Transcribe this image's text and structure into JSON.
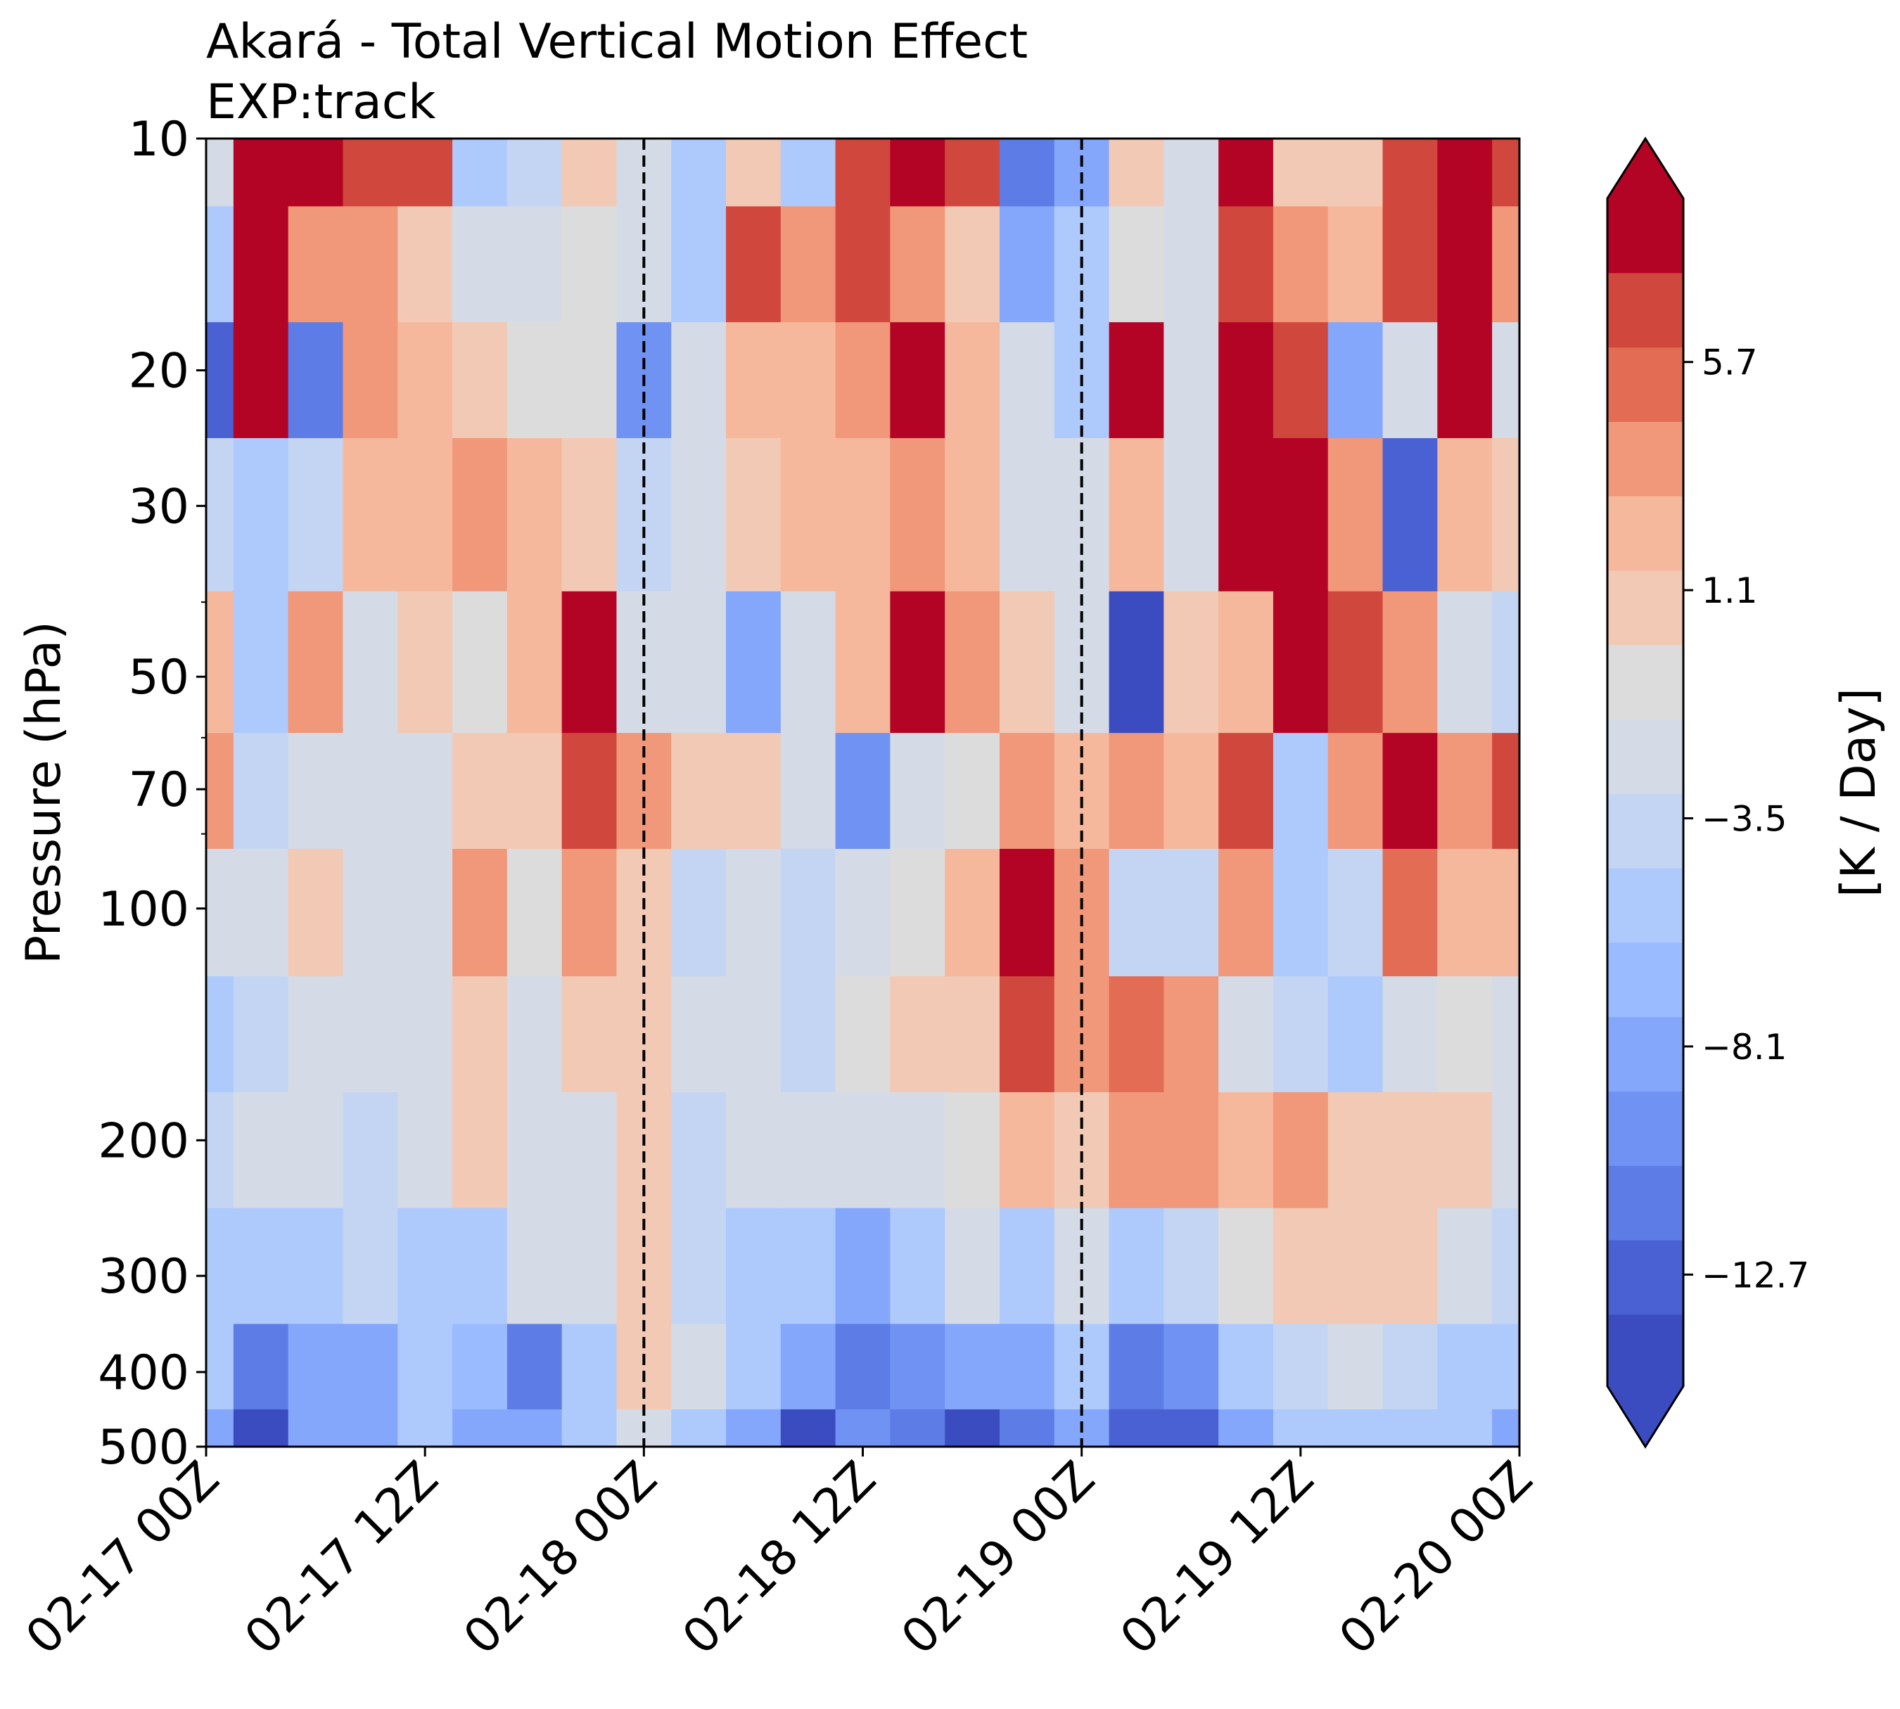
{
  "chart_data": {
    "type": "heatmap",
    "title": "Akará - Total Vertical Motion Effect",
    "subtitle": "EXP:track",
    "xlabel": "",
    "ylabel": "Pressure (hPa)",
    "y_scale": "log",
    "y_inverted": true,
    "ylim": [
      500,
      10
    ],
    "x_tick_labels": [
      "02-17 00Z",
      "02-17 12Z",
      "02-18 00Z",
      "02-18 12Z",
      "02-19 00Z",
      "02-19 12Z",
      "02-20 00Z"
    ],
    "y_ticks": [
      10,
      20,
      30,
      50,
      70,
      100,
      200,
      300,
      400,
      500
    ],
    "y_tick_labels": [
      "10",
      "20",
      "30",
      "50",
      "70",
      "100",
      "200",
      "300",
      "400",
      "500"
    ],
    "dashed_vertical_lines_at": [
      "02-18 00Z",
      "02-19 00Z"
    ],
    "colorbar": {
      "label": "[K / Day]",
      "tick_labels": [
        "5.7",
        "1.1",
        "−3.5",
        "−8.1",
        "−12.7"
      ],
      "tick_values": [
        5.7,
        1.1,
        -3.5,
        -8.1,
        -12.7
      ],
      "levels": [
        -14.95,
        -13.5,
        -12.0,
        -10.5,
        -9.0,
        -7.5,
        -6.0,
        -4.5,
        -3.0,
        -1.5,
        0.0,
        1.5,
        3.0,
        4.5,
        6.0,
        7.5,
        9.0
      ],
      "extend": "both",
      "colormap": "coolwarm",
      "colors": [
        "#3b4cc0",
        "#4961d2",
        "#5d7ce6",
        "#6f92f3",
        "#84a7fc",
        "#9abbff",
        "#aec9fc",
        "#c4d5f3",
        "#d4dbe6",
        "#dddcdc",
        "#f2c9b4",
        "#f6b89c",
        "#f1977a",
        "#e36c55",
        "#d0473d",
        "#b40426",
        "#9d0b24"
      ],
      "extend_min_color": "#3b4cc0",
      "extend_max_color": "#b40426"
    },
    "time_steps": [
      "02-17 00Z",
      "02-17 03Z",
      "02-17 06Z",
      "02-17 09Z",
      "02-17 12Z",
      "02-17 15Z",
      "02-17 18Z",
      "02-17 21Z",
      "02-18 00Z",
      "02-18 03Z",
      "02-18 06Z",
      "02-18 09Z",
      "02-18 12Z",
      "02-18 15Z",
      "02-18 18Z",
      "02-18 21Z",
      "02-19 00Z",
      "02-19 03Z",
      "02-19 06Z",
      "02-19 09Z",
      "02-19 12Z",
      "02-19 15Z",
      "02-19 18Z",
      "02-19 21Z",
      "02-20 00Z"
    ],
    "pressure_levels": [
      10,
      15,
      20,
      30,
      50,
      70,
      100,
      150,
      200,
      300,
      400,
      500
    ],
    "values": [
      [
        -3,
        9,
        9,
        6,
        6,
        -6,
        -4,
        0,
        -3,
        -6,
        0,
        -6,
        7,
        9,
        6,
        -12,
        -9,
        0,
        -3,
        9,
        0,
        0,
        6,
        9,
        6
      ],
      [
        -6,
        8,
        3,
        3,
        0,
        -3,
        -3,
        -1,
        -3,
        -6,
        6,
        3,
        6,
        3,
        0,
        -9,
        -6,
        -1,
        -3,
        6,
        3,
        2,
        6,
        9,
        3
      ],
      [
        -13,
        8,
        -12,
        3,
        2,
        0,
        -1,
        -1,
        -10,
        -2,
        2,
        2,
        3,
        8,
        2,
        -3,
        -6,
        8,
        -3,
        9,
        6,
        -9,
        -3,
        8,
        -3
      ],
      [
        -4,
        -6,
        -4,
        2,
        2,
        3,
        2,
        1,
        -4,
        -2,
        0,
        2,
        2,
        3,
        2,
        -3,
        -2,
        2,
        -3,
        9,
        9,
        3,
        -13,
        2,
        0
      ],
      [
        2,
        -6,
        3,
        -2,
        1,
        -1,
        2,
        9,
        -2,
        -2,
        -9,
        -2,
        2,
        9,
        4,
        0,
        -2,
        -14,
        0,
        2,
        9,
        6,
        3,
        -2,
        -4
      ],
      [
        3,
        -4,
        -2,
        -2,
        -3,
        0,
        1,
        6,
        4,
        0,
        1,
        -3,
        -10,
        -2,
        -1,
        3,
        2,
        3,
        2,
        6,
        -6,
        3,
        8,
        3,
        6
      ],
      [
        -2,
        -3,
        0,
        -2,
        -2,
        3,
        -1,
        3,
        1,
        -4,
        -3,
        -4,
        -3,
        -1,
        2,
        8,
        3,
        -4,
        -4,
        4,
        -6,
        -4,
        5,
        2,
        2
      ],
      [
        -6,
        -4,
        -3,
        -3,
        -3,
        0,
        -3,
        0,
        0,
        -3,
        -3,
        -4,
        -1,
        0,
        1,
        6,
        3,
        5,
        4,
        -3,
        -4,
        -6,
        -2,
        -1,
        -3
      ],
      [
        -4,
        -3,
        -2,
        -4,
        -3,
        0,
        -3,
        -2,
        0,
        -4,
        -3,
        -3,
        -2,
        -2,
        -1,
        2,
        0,
        4,
        4,
        2,
        3,
        0,
        1,
        1,
        -2
      ],
      [
        -5,
        -6,
        -6,
        -4,
        -5,
        -6,
        -3,
        -2,
        0,
        -4,
        -5,
        -6,
        -9,
        -6,
        -3,
        -5,
        -3,
        -6,
        -4,
        -1,
        0,
        0,
        1,
        -3,
        -4
      ],
      [
        -6,
        -11,
        -9,
        -8,
        -6,
        -7,
        -11,
        -5,
        0,
        -3,
        -6,
        -9,
        -12,
        -10,
        -9,
        -8,
        -6,
        -11,
        -10,
        -6,
        -4,
        -3,
        -4,
        -5,
        -6
      ],
      [
        -9,
        -14,
        -9,
        -8,
        -6,
        -8,
        -9,
        -6,
        -3,
        -6,
        -9,
        -14,
        -10,
        -11,
        -14,
        -11,
        -8,
        -13,
        -13,
        -8,
        -6,
        -5,
        -6,
        -6,
        -8
      ]
    ]
  }
}
